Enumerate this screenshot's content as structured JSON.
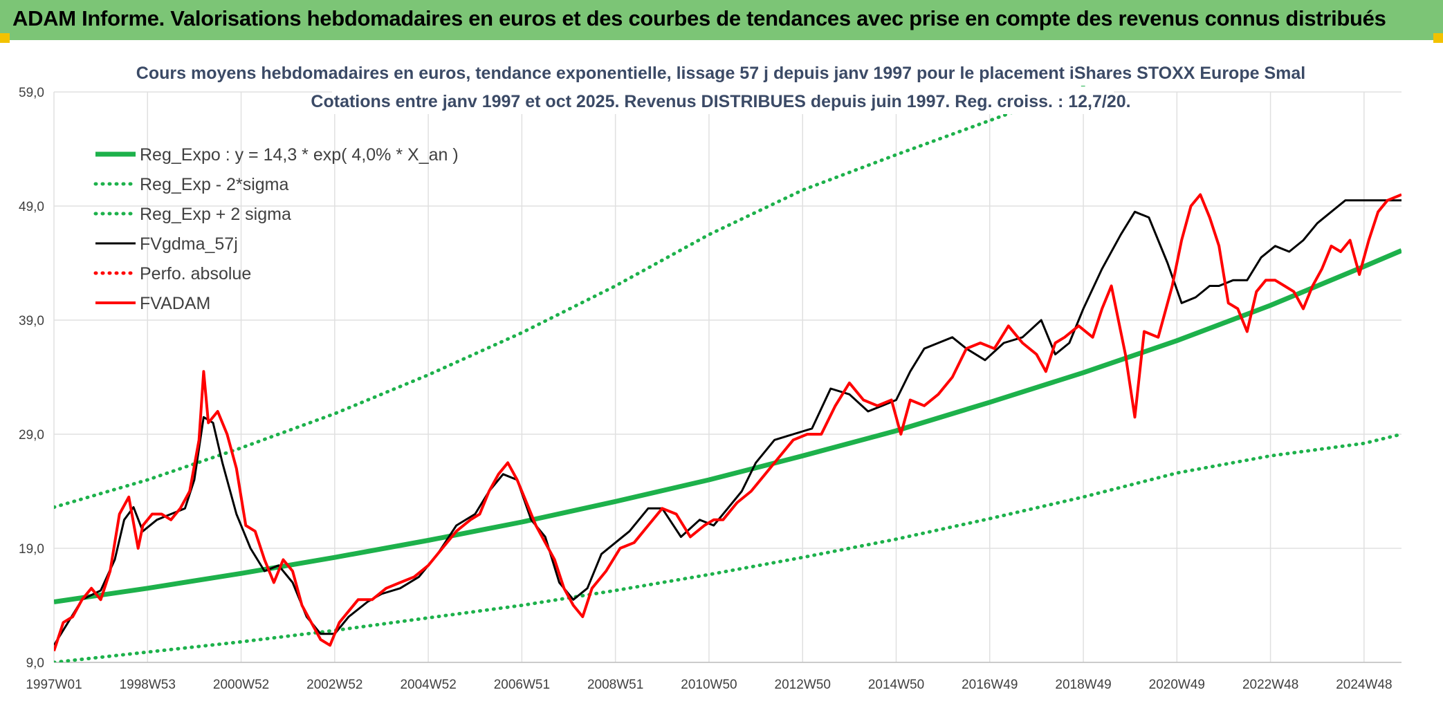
{
  "banner": {
    "title": "ADAM Informe. Valorisations hebdomadaires en euros et des courbes de tendances avec prise en compte des revenus connus distribués"
  },
  "colors": {
    "banner_bg": "#7cc576",
    "trend_green": "#1db14b",
    "series_black": "#000000",
    "series_red": "#ff0000",
    "grid": "#e0e0e0"
  },
  "chart_data": {
    "type": "line",
    "title": "Cours moyens hebdomadaires en euros, tendance exponentielle, lissage 57 j depuis janv 1997 pour le placement iShares STOXX Europe Smal",
    "subtitle": "Cotations entre janv 1997 et oct 2025. Revenus DISTRIBUES depuis juin 1997. Reg. croiss. : 12,7/20.",
    "xlabel": "",
    "ylabel": "",
    "xlim": [
      1997.0,
      2025.8
    ],
    "ylim": [
      9.0,
      59.0
    ],
    "y_ticks": [
      "9,0",
      "19,0",
      "29,0",
      "39,0",
      "49,0",
      "59,0"
    ],
    "y_tick_values": [
      9,
      19,
      29,
      39,
      49,
      59
    ],
    "x_ticks": [
      "1997W01",
      "1998W53",
      "2000W52",
      "2002W52",
      "2004W52",
      "2006W51",
      "2008W51",
      "2010W50",
      "2012W50",
      "2014W50",
      "2016W49",
      "2018W49",
      "2020W49",
      "2022W48",
      "2024W48"
    ],
    "x_tick_values": [
      1997.0,
      1999.0,
      2001.0,
      2003.0,
      2005.0,
      2007.0,
      2009.0,
      2011.0,
      2013.0,
      2015.0,
      2017.0,
      2019.0,
      2021.0,
      2023.0,
      2025.0
    ],
    "grid": true,
    "legend_position": "top-left",
    "series": [
      {
        "name": "Reg_Expo : y = 14,3 * exp( 4,0% *  X_an )",
        "style": "solid-thick",
        "color": "#1db14b",
        "x": [
          1997.0,
          1999.0,
          2001.0,
          2003.0,
          2005.0,
          2007.0,
          2009.0,
          2011.0,
          2013.0,
          2015.0,
          2017.0,
          2019.0,
          2021.0,
          2023.0,
          2025.0,
          2025.8
        ],
        "y": [
          14.3,
          15.5,
          16.8,
          18.2,
          19.7,
          21.3,
          23.1,
          25.0,
          27.1,
          29.3,
          31.8,
          34.4,
          37.2,
          40.3,
          43.7,
          45.1
        ]
      },
      {
        "name": "Reg_Exp - 2*sigma",
        "style": "dotted",
        "color": "#1db14b",
        "x": [
          1997.0,
          1999.0,
          2001.0,
          2003.0,
          2005.0,
          2007.0,
          2009.0,
          2011.0,
          2013.0,
          2015.0,
          2017.0,
          2019.0,
          2021.0,
          2023.0,
          2025.0,
          2025.8
        ],
        "y": [
          9.0,
          9.9,
          10.8,
          11.8,
          12.9,
          14.0,
          15.3,
          16.7,
          18.2,
          19.8,
          21.6,
          23.5,
          25.6,
          27.1,
          28.2,
          29.0
        ]
      },
      {
        "name": "Reg_Exp + 2 sigma",
        "style": "dotted",
        "color": "#1db14b",
        "x": [
          1997.0,
          1999.0,
          2001.0,
          2003.0,
          2005.0,
          2007.0,
          2009.0,
          2011.0,
          2013.0,
          2015.0,
          2017.0,
          2019.0,
          2020.5
        ],
        "y": [
          22.6,
          25.0,
          27.8,
          30.8,
          34.2,
          37.9,
          42.0,
          46.5,
          50.4,
          53.5,
          56.5,
          59.5,
          62.0
        ]
      },
      {
        "name": "FVgdma_57j",
        "style": "solid",
        "color": "#000000",
        "x": [
          1997.0,
          1997.3,
          1997.6,
          1998.0,
          1998.3,
          1998.5,
          1998.7,
          1998.9,
          1999.2,
          1999.5,
          1999.8,
          2000.0,
          2000.2,
          2000.4,
          2000.6,
          2000.9,
          2001.2,
          2001.5,
          2001.8,
          2002.1,
          2002.4,
          2002.7,
          2003.0,
          2003.3,
          2003.7,
          2004.0,
          2004.4,
          2004.8,
          2005.2,
          2005.6,
          2006.0,
          2006.3,
          2006.6,
          2006.9,
          2007.2,
          2007.5,
          2007.8,
          2008.1,
          2008.4,
          2008.7,
          2009.0,
          2009.3,
          2009.7,
          2010.0,
          2010.4,
          2010.8,
          2011.1,
          2011.4,
          2011.7,
          2012.0,
          2012.4,
          2012.8,
          2013.2,
          2013.6,
          2014.0,
          2014.4,
          2014.7,
          2015.0,
          2015.3,
          2015.6,
          2015.9,
          2016.2,
          2016.5,
          2016.9,
          2017.3,
          2017.7,
          2018.1,
          2018.4,
          2018.7,
          2019.0,
          2019.4,
          2019.8,
          2020.1,
          2020.4,
          2020.8,
          2021.1,
          2021.4,
          2021.7,
          2021.9,
          2022.2,
          2022.5,
          2022.8,
          2023.1,
          2023.4,
          2023.7,
          2024.0,
          2024.3,
          2024.6,
          2024.9,
          2025.2,
          2025.5,
          2025.8
        ],
        "y": [
          10.5,
          12.5,
          14.5,
          15.3,
          18.0,
          21.5,
          22.6,
          20.5,
          21.5,
          22.0,
          22.5,
          25.0,
          30.5,
          30.0,
          26.5,
          22.0,
          19.0,
          17.0,
          17.5,
          16.0,
          13.0,
          11.5,
          11.5,
          13.0,
          14.3,
          15.0,
          15.5,
          16.5,
          18.5,
          21.0,
          22.0,
          24.0,
          25.5,
          25.0,
          21.5,
          20.0,
          16.0,
          14.5,
          15.5,
          18.5,
          19.5,
          20.5,
          22.5,
          22.5,
          20.0,
          21.5,
          21.0,
          22.5,
          24.0,
          26.5,
          28.5,
          29.0,
          29.5,
          33.0,
          32.5,
          31.0,
          31.5,
          32.0,
          34.5,
          36.5,
          37.0,
          37.5,
          36.5,
          35.5,
          37.0,
          37.5,
          39.0,
          36.0,
          37.0,
          40.0,
          43.5,
          46.5,
          48.5,
          48.0,
          44.0,
          40.5,
          41.0,
          42.0,
          42.0,
          42.5,
          42.5,
          44.5,
          45.5,
          45.0,
          46.0,
          47.5,
          48.5,
          49.5,
          49.5,
          49.5,
          49.5,
          49.5
        ]
      },
      {
        "name": "Perfo. absolue",
        "style": "dotted",
        "color": "#ff0000",
        "x": [],
        "y": []
      },
      {
        "name": "FVADAM",
        "style": "solid-thick",
        "color": "#ff0000",
        "x": [
          1997.0,
          1997.2,
          1997.4,
          1997.6,
          1997.8,
          1998.0,
          1998.2,
          1998.4,
          1998.6,
          1998.8,
          1998.9,
          1999.1,
          1999.3,
          1999.5,
          1999.7,
          1999.9,
          2000.1,
          2000.2,
          2000.3,
          2000.5,
          2000.7,
          2000.9,
          2001.1,
          2001.3,
          2001.5,
          2001.7,
          2001.9,
          2002.1,
          2002.3,
          2002.5,
          2002.7,
          2002.9,
          2003.1,
          2003.3,
          2003.5,
          2003.8,
          2004.1,
          2004.4,
          2004.7,
          2005.0,
          2005.3,
          2005.6,
          2005.9,
          2006.1,
          2006.3,
          2006.5,
          2006.7,
          2006.9,
          2007.1,
          2007.3,
          2007.5,
          2007.7,
          2007.9,
          2008.1,
          2008.3,
          2008.5,
          2008.8,
          2009.1,
          2009.4,
          2009.7,
          2010.0,
          2010.3,
          2010.6,
          2010.9,
          2011.1,
          2011.3,
          2011.6,
          2011.9,
          2012.2,
          2012.5,
          2012.8,
          2013.1,
          2013.4,
          2013.7,
          2014.0,
          2014.3,
          2014.6,
          2014.9,
          2015.1,
          2015.3,
          2015.6,
          2015.9,
          2016.2,
          2016.5,
          2016.8,
          2017.1,
          2017.4,
          2017.7,
          2018.0,
          2018.2,
          2018.4,
          2018.6,
          2018.9,
          2019.2,
          2019.4,
          2019.6,
          2019.9,
          2020.1,
          2020.3,
          2020.6,
          2020.9,
          2021.1,
          2021.3,
          2021.5,
          2021.7,
          2021.9,
          2022.1,
          2022.3,
          2022.5,
          2022.7,
          2022.9,
          2023.1,
          2023.3,
          2023.5,
          2023.7,
          2023.9,
          2024.1,
          2024.3,
          2024.5,
          2024.7,
          2024.9,
          2025.1,
          2025.3,
          2025.5,
          2025.8
        ],
        "y": [
          10.0,
          12.5,
          13.0,
          14.5,
          15.5,
          14.5,
          17.0,
          22.0,
          23.5,
          19.0,
          21.0,
          22.0,
          22.0,
          21.5,
          22.5,
          24.0,
          28.5,
          34.5,
          30.0,
          31.0,
          29.0,
          26.0,
          21.0,
          20.5,
          18.0,
          16.0,
          18.0,
          17.0,
          14.0,
          12.5,
          11.0,
          10.5,
          12.5,
          13.5,
          14.5,
          14.5,
          15.5,
          16.0,
          16.5,
          17.5,
          19.0,
          20.5,
          21.5,
          22.0,
          24.0,
          25.5,
          26.5,
          25.0,
          23.0,
          21.0,
          19.5,
          18.0,
          15.5,
          14.0,
          13.0,
          15.5,
          17.0,
          19.0,
          19.5,
          21.0,
          22.5,
          22.0,
          20.0,
          21.0,
          21.5,
          21.5,
          23.0,
          24.0,
          25.5,
          27.0,
          28.5,
          29.0,
          29.0,
          31.5,
          33.5,
          32.0,
          31.5,
          32.0,
          29.0,
          32.0,
          31.5,
          32.5,
          34.0,
          36.5,
          37.0,
          36.5,
          38.5,
          37.0,
          36.0,
          34.5,
          37.0,
          37.5,
          38.5,
          37.5,
          40.0,
          42.0,
          36.0,
          30.5,
          38.0,
          37.5,
          42.0,
          46.0,
          49.0,
          50.0,
          48.0,
          45.5,
          40.5,
          40.0,
          38.0,
          41.5,
          42.5,
          42.5,
          42.0,
          41.5,
          40.0,
          42.0,
          43.5,
          45.5,
          45.0,
          46.0,
          43.0,
          46.0,
          48.5,
          49.5,
          50.0
        ]
      }
    ]
  }
}
